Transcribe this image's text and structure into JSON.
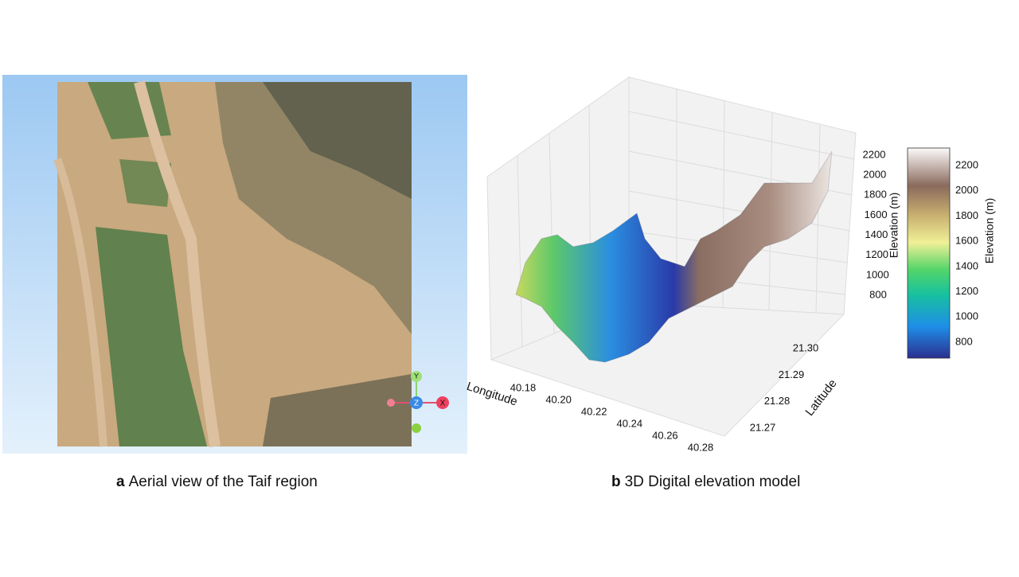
{
  "panels": {
    "a": {
      "label": "a",
      "caption": "Aerial view of the Taif region",
      "gizmo": {
        "y": "Y",
        "z": "Z",
        "x": "X"
      }
    },
    "b": {
      "label": "b",
      "caption": "3D Digital elevation model",
      "x_label": "Longitude",
      "y_label": "Latitude",
      "z_label": "Elevation (m)",
      "x_ticks": [
        "40.18",
        "40.20",
        "40.22",
        "40.24",
        "40.26",
        "40.28"
      ],
      "y_ticks": [
        "21.27",
        "21.28",
        "21.29",
        "21.30"
      ],
      "z_ticks": [
        "800",
        "1000",
        "1200",
        "1400",
        "1600",
        "1800",
        "2000",
        "2200"
      ],
      "colorbar_label": "Elevation (m)",
      "colorbar_ticks": [
        "800",
        "1000",
        "1200",
        "1400",
        "1600",
        "1800",
        "2000",
        "2200"
      ]
    }
  }
}
